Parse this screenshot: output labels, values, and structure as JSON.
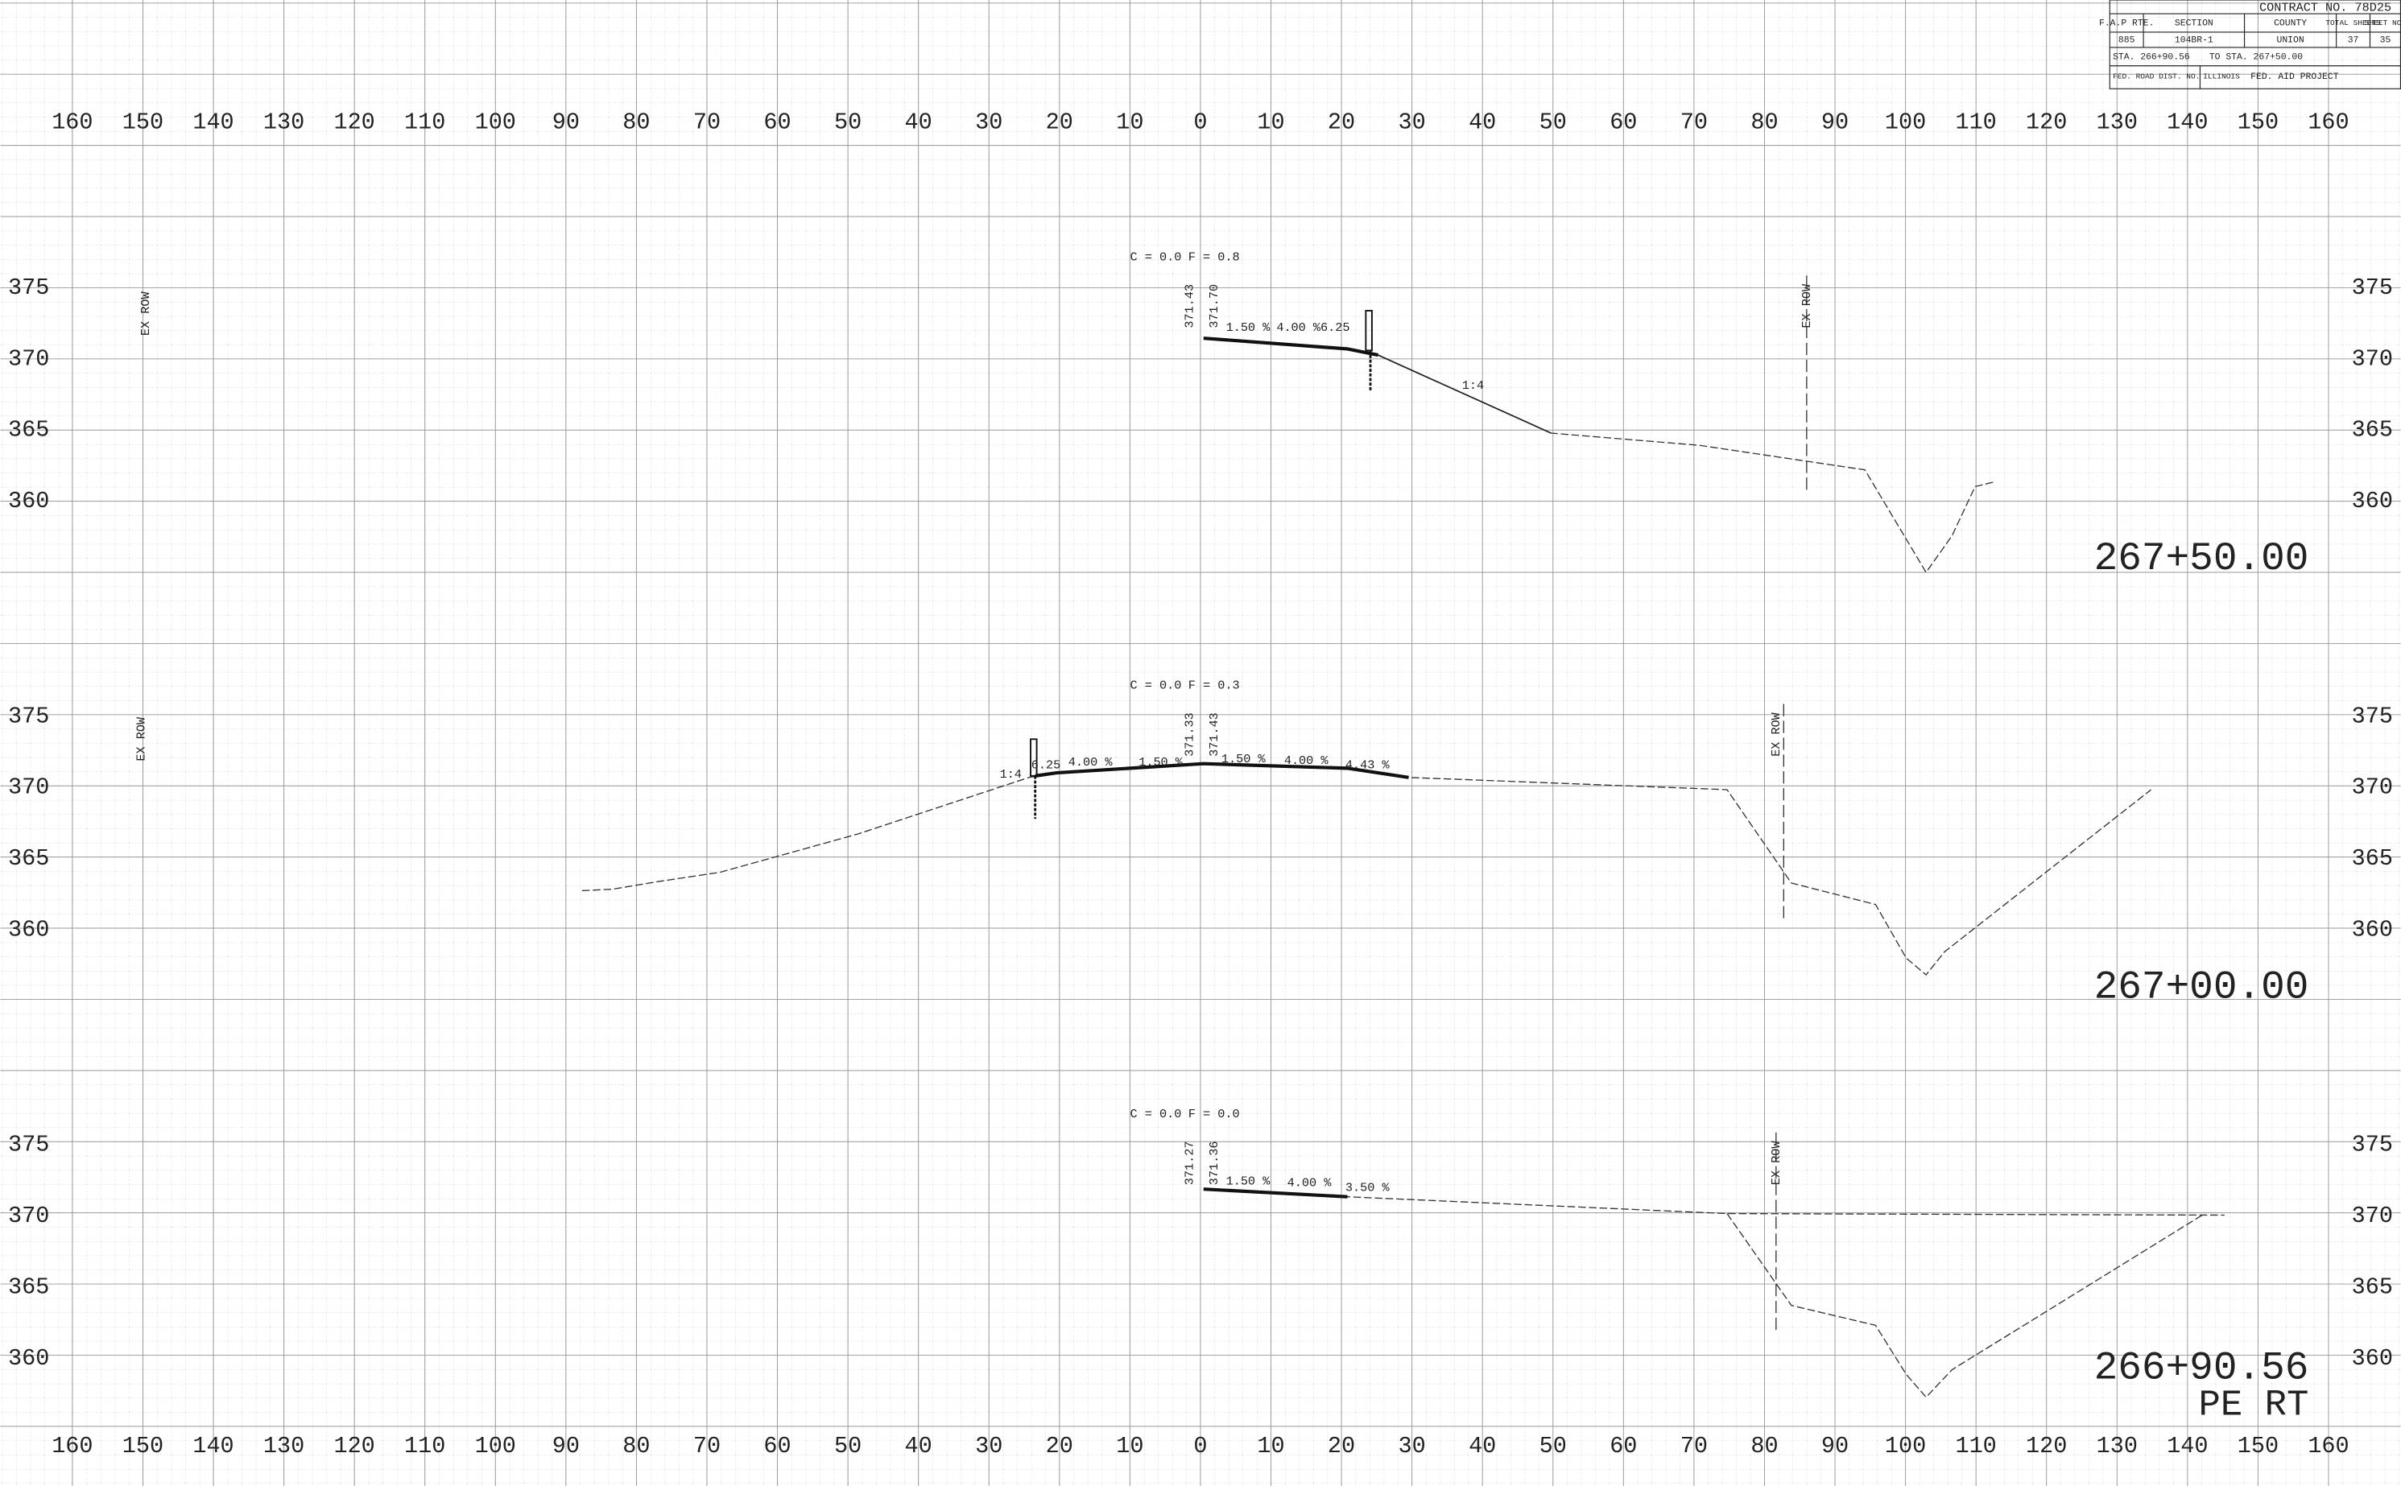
{
  "title_block": {
    "contract": "CONTRACT NO. 78D25",
    "headers": [
      "F.A.P RTE.",
      "SECTION",
      "COUNTY",
      "TOTAL SHEETS",
      "SHEET NO."
    ],
    "row": [
      "885",
      "104BR-1",
      "UNION",
      "37",
      "35"
    ],
    "sta_from": "STA. 266+90.56",
    "sta_to": "TO STA. 267+50.00",
    "dist": "FED. ROAD DIST. NO.",
    "state": "ILLINOIS",
    "project": "FED. AID PROJECT"
  },
  "offset_labels": [
    "160",
    "150",
    "140",
    "130",
    "120",
    "110",
    "100",
    "90",
    "80",
    "70",
    "60",
    "50",
    "40",
    "30",
    "20",
    "10",
    "0",
    "10",
    "20",
    "30",
    "40",
    "50",
    "60",
    "70",
    "80",
    "90",
    "100",
    "110",
    "120",
    "130",
    "140",
    "150",
    "160"
  ],
  "elevation_labels": [
    "375",
    "370",
    "365",
    "360"
  ],
  "sections": [
    {
      "station": "267+50.00",
      "cut": "C = 0.0",
      "fill": "F = 0.8",
      "ex_row": [
        "EX ROW",
        "EX ROW"
      ],
      "annotations": [
        "371.43",
        "371.70",
        "1.50 %",
        "4.00 %",
        "6.25",
        "1:4"
      ]
    },
    {
      "station": "267+00.00",
      "cut": "C = 0.0",
      "fill": "F = 0.3",
      "ex_row": [
        "EX ROW",
        "EX ROW"
      ],
      "annotations": [
        "371.33",
        "371.43",
        "1:4",
        "6.25",
        "4.00 %",
        "1.50 %",
        "1.50 %",
        "4.00 %",
        "4.43 %"
      ]
    },
    {
      "station": "266+90.56",
      "note": "PE RT",
      "cut": "C = 0.0",
      "fill": "F = 0.0",
      "ex_row": [
        "EX ROW"
      ],
      "annotations": [
        "371.27",
        "371.36",
        "1.50 %",
        "4.00 %",
        "3.50 %"
      ]
    }
  ]
}
